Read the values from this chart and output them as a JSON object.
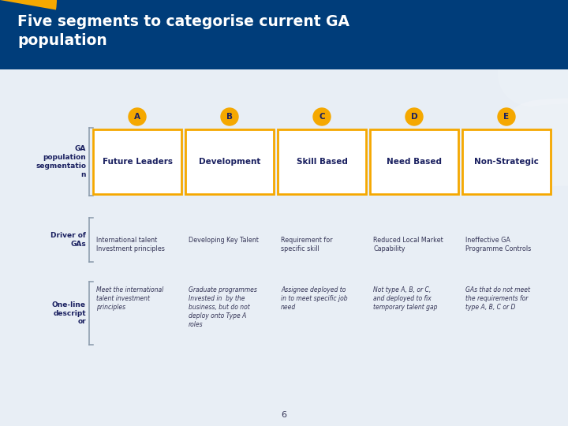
{
  "title": "Five segments to categorise current GA\npopulation",
  "header_bg": "#003d7a",
  "header_text_color": "#ffffff",
  "body_bg": "#e8eef5",
  "accent_color": "#f5a800",
  "page_number": "6",
  "row_labels": [
    "GA\npopulation\nsegmentatio\nn",
    "Driver of\nGAs",
    "One-line\ndescript\nor"
  ],
  "segments": [
    {
      "letter": "A",
      "title": "Future Leaders",
      "driver": "International talent\nInvestment principles",
      "description": "Meet the international\ntalent investment\nprinciples"
    },
    {
      "letter": "B",
      "title": "Development",
      "driver": "Developing Key Talent",
      "description": "Graduate programmes\nInvested in  by the\nbusiness, but do not\ndeploy onto Type A\nroles"
    },
    {
      "letter": "C",
      "title": "Skill Based",
      "driver": "Requirement for\nspecific skill",
      "description": "Assignee deployed to\nin to meet specific job\nneed"
    },
    {
      "letter": "D",
      "title": "Need Based",
      "driver": "Reduced Local Market\nCapability",
      "description": "Not type A, B, or C,\nand deployed to fix\ntemporary talent gap"
    },
    {
      "letter": "E",
      "title": "Non-Strategic",
      "driver": "Ineffective GA\nProgramme Controls",
      "description": "GAs that do not meet\nthe requirements for\ntype A, B, C or D"
    }
  ]
}
